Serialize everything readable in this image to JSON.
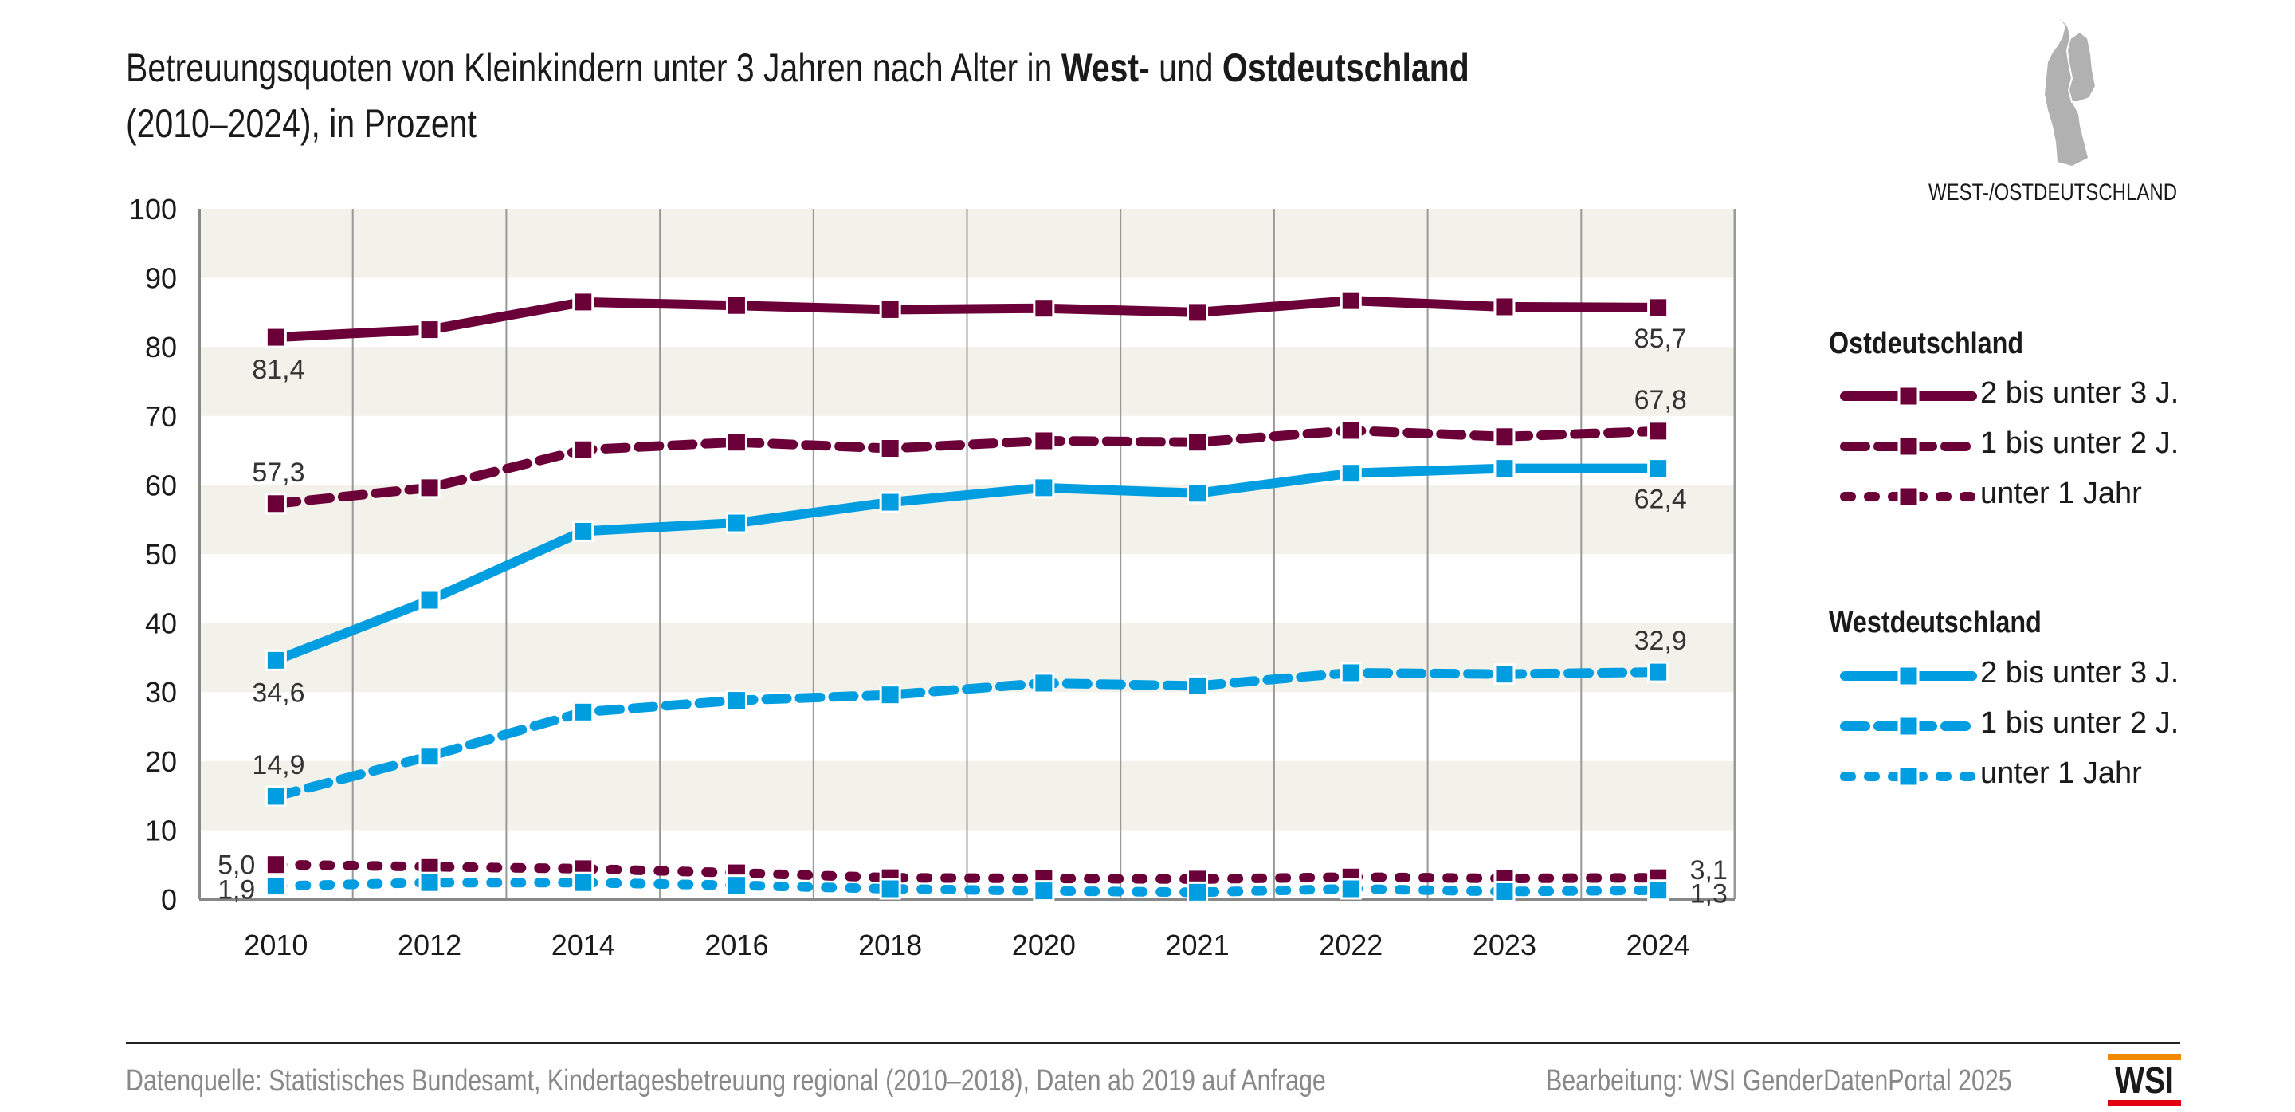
{
  "title": {
    "part1": "Betreuungsquoten von Kleinkindern unter 3 Jahren nach Alter in ",
    "bold1": "West-",
    "part2": " und ",
    "bold2": "Ostdeutschland",
    "line2": "(2010–2024), in Prozent"
  },
  "map_label": "WEST-/OSTDEUTSCHLAND",
  "colors": {
    "east": "#6b0038",
    "west": "#009ee0",
    "band": "#f2f1ea"
  },
  "legend": {
    "east_heading": "Ostdeutschland",
    "west_heading": "Westdeutschland",
    "items": [
      "2 bis unter 3 J.",
      "1 bis unter 2 J.",
      "unter 1 Jahr"
    ]
  },
  "footer": {
    "source": "Datenquelle: Statistisches Bundesamt, Kindertagesbetreuung regional (2010–2018), Daten ab 2019 auf Anfrage",
    "editor": "Bearbeitung: WSI GenderDatenPortal 2025",
    "logo": "WSI"
  },
  "chart_data": {
    "type": "line",
    "title": "Betreuungsquoten von Kleinkindern unter 3 Jahren nach Alter in West- und Ostdeutschland (2010–2024), in Prozent",
    "xlabel": "",
    "ylabel": "",
    "ylim": [
      0,
      100
    ],
    "yticks": [
      "0",
      "10",
      "20",
      "30",
      "40",
      "50",
      "60",
      "70",
      "80",
      "90",
      "100"
    ],
    "categories": [
      "2010",
      "2012",
      "2014",
      "2016",
      "2018",
      "2020",
      "2021",
      "2022",
      "2023",
      "2024"
    ],
    "grid": "alternating horizontal bands, vertical separators",
    "legend_position": "right",
    "series": [
      {
        "name": "Ostdeutschland – 2 bis unter 3 J.",
        "region": "east",
        "style": "solid",
        "values": [
          81.4,
          82.5,
          86.5,
          86.0,
          85.4,
          85.6,
          85.0,
          86.7,
          85.8,
          85.7
        ],
        "labels": {
          "first": "81,4",
          "last": "85,7"
        }
      },
      {
        "name": "Ostdeutschland – 1 bis unter 2 J.",
        "region": "east",
        "style": "dashed",
        "values": [
          57.3,
          59.6,
          65.1,
          66.2,
          65.3,
          66.4,
          66.2,
          67.9,
          67.0,
          67.8
        ],
        "labels": {
          "first": "57,3",
          "last": "67,8"
        }
      },
      {
        "name": "Ostdeutschland – unter 1 Jahr",
        "region": "east",
        "style": "dotted",
        "values": [
          5.0,
          4.7,
          4.4,
          3.8,
          3.1,
          3.0,
          2.9,
          3.2,
          3.0,
          3.1
        ],
        "labels": {
          "first": "5,0",
          "last": "3,1"
        }
      },
      {
        "name": "Westdeutschland – 2 bis unter 3 J.",
        "region": "west",
        "style": "solid",
        "values": [
          34.6,
          43.3,
          53.3,
          54.5,
          57.5,
          59.6,
          58.8,
          61.7,
          62.4,
          62.4
        ],
        "labels": {
          "first": "34,6",
          "last": "62,4"
        }
      },
      {
        "name": "Westdeutschland – 1 bis unter 2 J.",
        "region": "west",
        "style": "dashed",
        "values": [
          14.9,
          20.7,
          27.1,
          28.8,
          29.6,
          31.3,
          30.9,
          32.8,
          32.6,
          32.9
        ],
        "labels": {
          "first": "14,9",
          "last": "32,9"
        }
      },
      {
        "name": "Westdeutschland – unter 1 Jahr",
        "region": "west",
        "style": "dotted",
        "values": [
          1.9,
          2.4,
          2.4,
          2.0,
          1.5,
          1.2,
          1.0,
          1.5,
          1.1,
          1.3
        ],
        "labels": {
          "first": "1,9",
          "last": "1,3"
        }
      }
    ]
  }
}
